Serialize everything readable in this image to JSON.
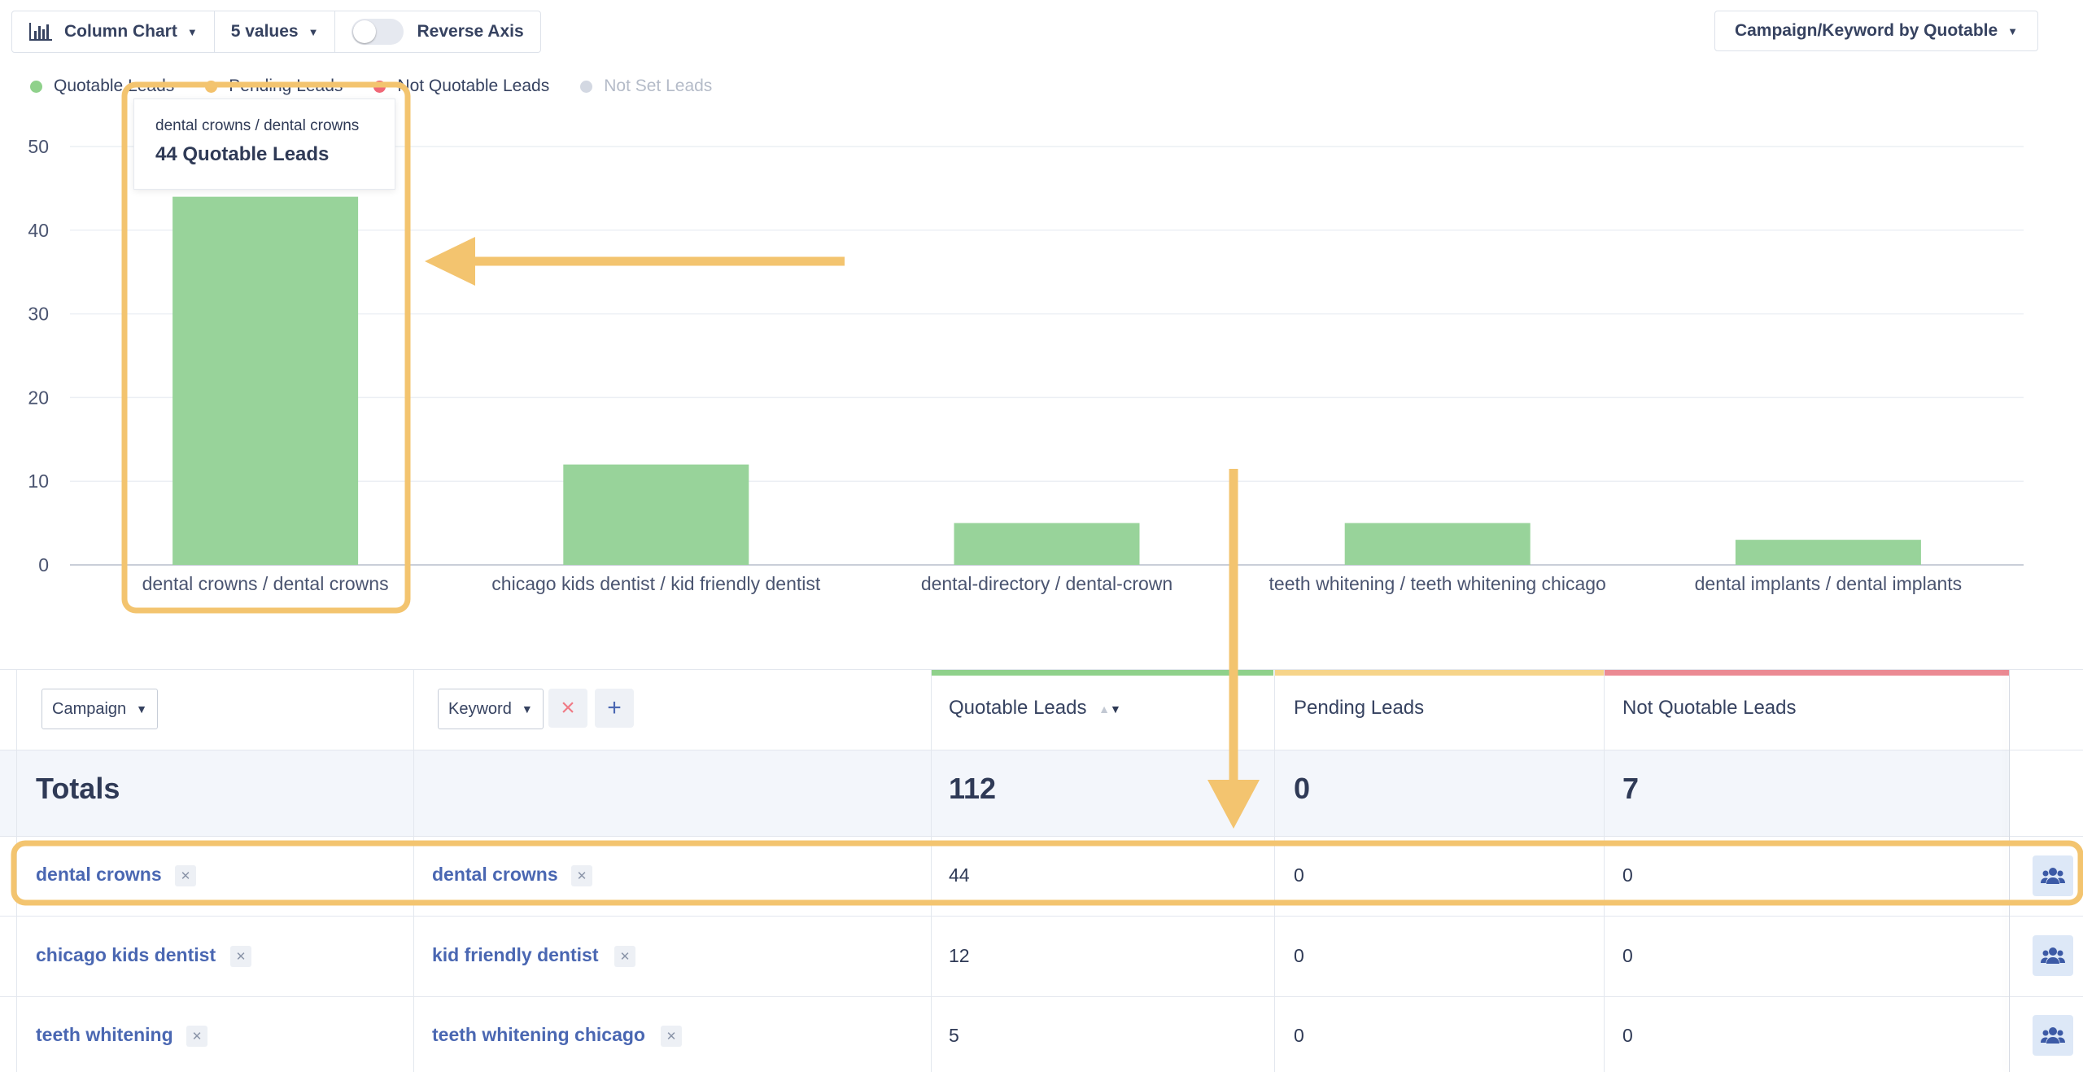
{
  "toolbar": {
    "chart_type": "Column Chart",
    "values_count": "5 values",
    "reverse_axis_label": "Reverse Axis",
    "grouping": "Campaign/Keyword by Quotable"
  },
  "legend": [
    {
      "label": "Quotable Leads",
      "color": "#8fd18b",
      "active": true
    },
    {
      "label": "Pending Leads",
      "color": "#f3c26d",
      "active": true
    },
    {
      "label": "Not Quotable Leads",
      "color": "#f06877",
      "active": true
    },
    {
      "label": "Not Set Leads",
      "color": "#d3d8e2",
      "active": false
    }
  ],
  "tooltip": {
    "title": "dental crowns / dental crowns",
    "value": "44 Quotable Leads"
  },
  "chart_data": {
    "type": "bar",
    "categories": [
      "dental crowns / dental crowns",
      "chicago kids dentist / kid friendly dentist",
      "dental-directory / dental-crown",
      "teeth whitening / teeth whitening chicago",
      "dental implants / dental implants"
    ],
    "series": [
      {
        "name": "Quotable Leads",
        "values": [
          44,
          12,
          5,
          5,
          3
        ],
        "color": "#98d39a"
      }
    ],
    "ylim": [
      0,
      50
    ],
    "yticks": [
      "0",
      "10",
      "20",
      "30",
      "40",
      "50"
    ],
    "grid": true,
    "legend_position": "top-left"
  },
  "table": {
    "filter_campaign": "Campaign",
    "filter_keyword": "Keyword",
    "remove_icon": "close-icon",
    "add_icon": "plus-icon",
    "headers": {
      "quotable": "Quotable Leads",
      "pending": "Pending Leads",
      "not_quotable": "Not Quotable Leads"
    },
    "header_colors": {
      "quotable": "#8fd18b",
      "pending": "#f6d48a",
      "not_quotable": "#eb8a93"
    },
    "totals": {
      "label": "Totals",
      "quotable": "112",
      "pending": "0",
      "not_quotable": "7"
    },
    "rows": [
      {
        "campaign": "dental crowns",
        "keyword": "dental crowns",
        "quotable": "44",
        "pending": "0",
        "not_quotable": "0"
      },
      {
        "campaign": "chicago kids dentist",
        "keyword": "kid friendly dentist",
        "quotable": "12",
        "pending": "0",
        "not_quotable": "0"
      },
      {
        "campaign": "teeth whitening",
        "keyword": "teeth whitening chicago",
        "quotable": "5",
        "pending": "0",
        "not_quotable": "0"
      }
    ],
    "row_action_icon": "users-icon"
  },
  "annotation_color": "#f3c46f"
}
